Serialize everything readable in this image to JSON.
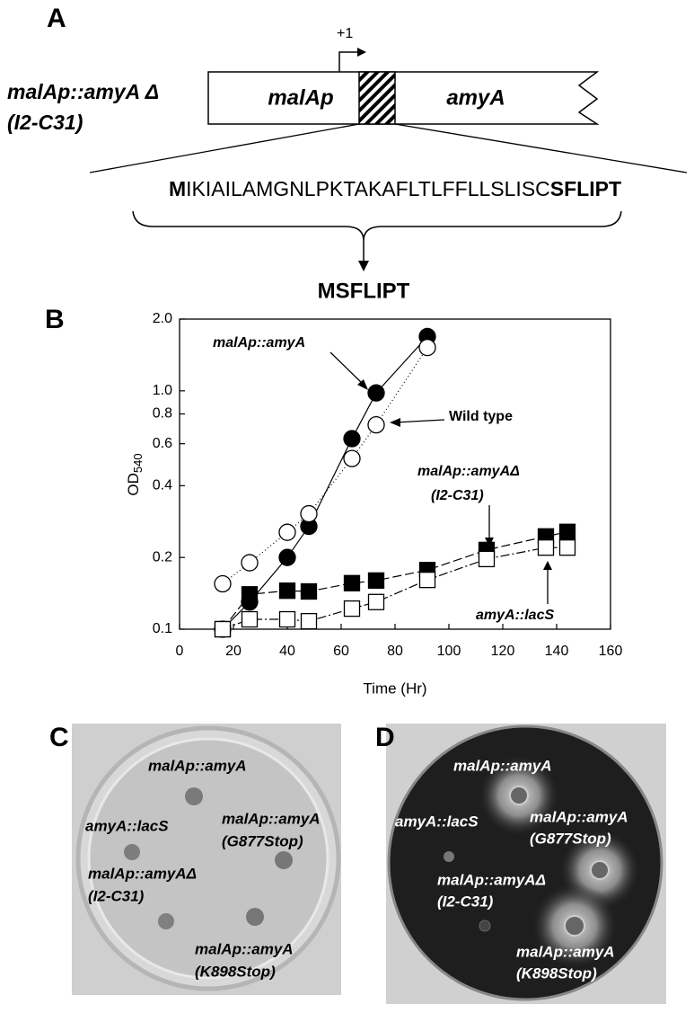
{
  "panel_a": {
    "label": "A",
    "promoter_start": "+1",
    "construct_name": "malAp::amyA Δ",
    "construct_variant": "(I2-C31)",
    "promoter": "malAp",
    "gene": "amyA",
    "sequence_start": "M",
    "sequence_deleted": "IKIAILAMGNLPKTAKAFLTLFFLLSLISC",
    "sequence_end": "SFLIPT",
    "result": "MSFLIPT"
  },
  "chart_data": {
    "type": "scatter",
    "label": "B",
    "x_label": "Time (Hr)",
    "y_label": "OD",
    "y_label_sub": "540",
    "xlim": [
      0,
      160
    ],
    "xticks": [
      0,
      20,
      40,
      60,
      80,
      100,
      120,
      140,
      160
    ],
    "ylim": [
      0.1,
      {
        "value": 2,
        "label": "2.0"
      }
    ],
    "yticks": [
      0.1,
      0.2,
      0.4,
      0.6,
      0.8,
      {
        "value": 1,
        "label": "1.0"
      },
      {
        "value": 2,
        "label": "2.0"
      }
    ],
    "log_y": true,
    "series": [
      {
        "name": "malAp::amyA",
        "marker": "circle",
        "color": "#000000",
        "fill": "#000000",
        "dash": "none",
        "x": [
          16,
          26,
          40,
          48,
          64,
          73,
          92
        ],
        "values": [
          0.1,
          0.13,
          0.2,
          0.27,
          0.63,
          0.98,
          1.69
        ]
      },
      {
        "name": "Wild type",
        "marker": "circle",
        "color": "#000000",
        "fill": "#ffffff",
        "dash": "1 3",
        "x": [
          16,
          26,
          40,
          48,
          64,
          73,
          92
        ],
        "values": [
          0.155,
          0.19,
          0.255,
          0.305,
          0.52,
          0.72,
          1.52
        ]
      },
      {
        "name": "malAp::amyAΔ",
        "marker": "square",
        "color": "#000000",
        "fill": "#000000",
        "dash": "10 4",
        "x": [
          16,
          26,
          40,
          48,
          64,
          73,
          92,
          114,
          136,
          144
        ],
        "values": [
          0.1,
          0.14,
          0.145,
          0.144,
          0.156,
          0.16,
          0.177,
          0.215,
          0.245,
          0.256
        ]
      },
      {
        "name": "amyA::lacS",
        "marker": "square",
        "color": "#000000",
        "fill": "#ffffff",
        "dash": "10 3 2 3",
        "x": [
          16,
          26,
          40,
          48,
          64,
          73,
          92,
          114,
          136,
          144
        ],
        "values": [
          0.1,
          0.11,
          0.11,
          0.108,
          0.122,
          0.13,
          0.161,
          0.197,
          0.22,
          0.22
        ]
      }
    ],
    "annotations": [
      "malAp::amyA",
      "Wild type",
      "malAp::amyAΔ",
      "(I2-C31)",
      "amyA::lacS"
    ]
  },
  "panel_c": {
    "label": "C",
    "texts": [
      "malAp::amyA",
      "amyA::lacS",
      "malAp::amyA",
      "(G877Stop)",
      "malAp::amyAΔ",
      "(I2-C31)",
      "malAp::amyA",
      "(K898Stop)"
    ]
  },
  "panel_d": {
    "label": "D",
    "texts": [
      "malAp::amyA",
      "amyA::lacS",
      "malAp::amyA",
      "(G877Stop)",
      "malAp::amyAΔ",
      "(I2-C31)",
      "malAp::amyA",
      "(K898Stop)"
    ]
  }
}
